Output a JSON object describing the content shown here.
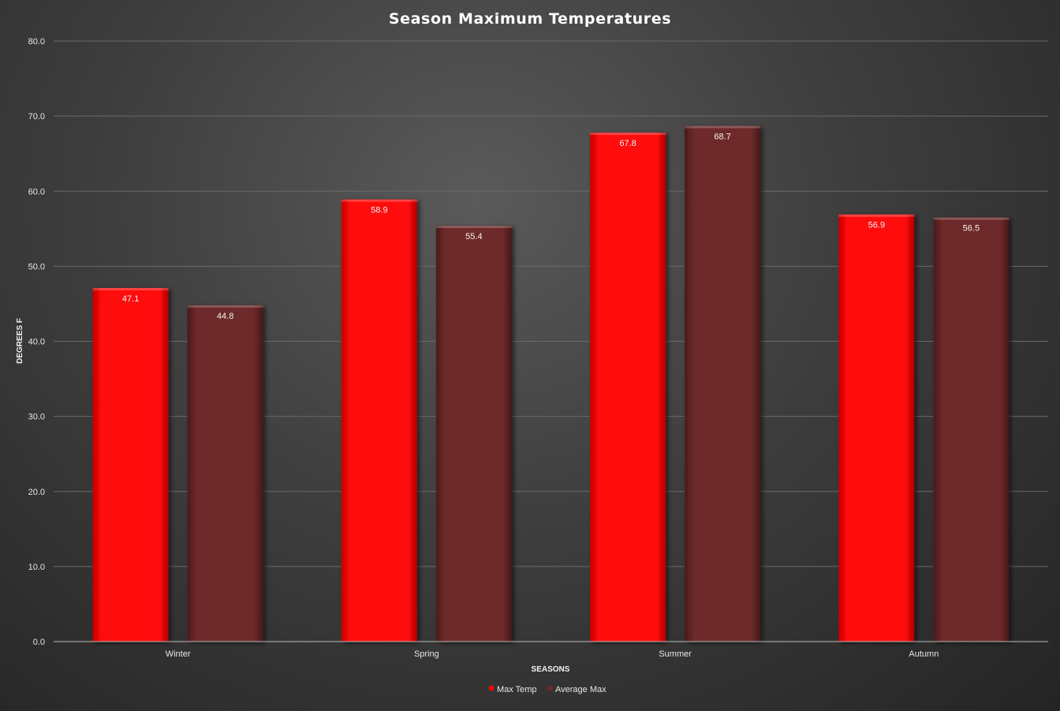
{
  "chart_data": {
    "type": "bar",
    "title": "Season Maximum Temperatures",
    "xlabel": "SEASONS",
    "ylabel": "DEGREES F",
    "categories": [
      "Winter",
      "Spring",
      "Summer",
      "Autumn"
    ],
    "series": [
      {
        "name": "Max Temp",
        "color": "#ff0606",
        "values": [
          47.1,
          58.9,
          67.8,
          56.9
        ]
      },
      {
        "name": "Average Max",
        "color": "#6e2a2a",
        "values": [
          44.8,
          55.4,
          68.7,
          56.5
        ]
      }
    ],
    "ylim": [
      0,
      80
    ],
    "yticks": [
      "0.0",
      "10.0",
      "20.0",
      "30.0",
      "40.0",
      "50.0",
      "60.0",
      "70.0",
      "80.0"
    ],
    "grid": true,
    "legend_position": "bottom"
  }
}
